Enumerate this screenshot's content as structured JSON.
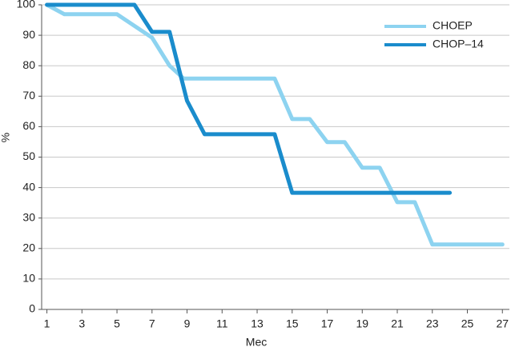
{
  "chart_data": {
    "type": "line",
    "xlabel": "Мес",
    "ylabel": "%",
    "xlim": [
      0.7,
      27.4
    ],
    "ylim": [
      0,
      100
    ],
    "xticks": [
      1,
      3,
      5,
      7,
      9,
      11,
      13,
      15,
      17,
      19,
      21,
      23,
      25,
      27
    ],
    "yticks": [
      0,
      10,
      20,
      30,
      40,
      50,
      60,
      70,
      80,
      90,
      100
    ],
    "grid": true,
    "legend": "upper right",
    "series": [
      {
        "name": "CHOEP",
        "color": "#8dd3f0",
        "x": [
          1,
          2,
          5,
          7,
          8,
          8.8,
          14,
          15,
          16,
          17,
          18,
          19,
          20,
          21,
          22,
          23,
          27
        ],
        "values": [
          100,
          96.9,
          96.9,
          89.2,
          80,
          75.8,
          75.8,
          62.5,
          62.5,
          54.9,
          54.9,
          46.5,
          46.5,
          35.2,
          35.2,
          21.3,
          21.3
        ]
      },
      {
        "name": "CHOP–14",
        "color": "#1a8ccc",
        "x": [
          1,
          6,
          7,
          8,
          9,
          10,
          14,
          15,
          24
        ],
        "values": [
          100,
          100,
          91.1,
          91.1,
          68.5,
          57.5,
          57.5,
          38.3,
          38.3
        ]
      }
    ]
  }
}
